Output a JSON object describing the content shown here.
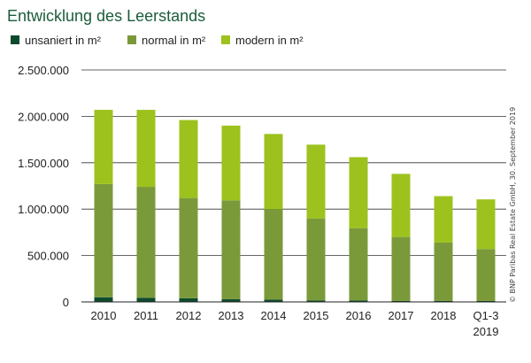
{
  "chart_data": {
    "type": "bar",
    "stacked": true,
    "title": "Entwicklung des Leerstands",
    "categories": [
      "2010",
      "2011",
      "2012",
      "2013",
      "2014",
      "2015",
      "2016",
      "2017",
      "2018",
      "Q1-3\n2019"
    ],
    "series": [
      {
        "name": "unsaniert in m²",
        "color": "#0e4a2e",
        "values": [
          50000,
          45000,
          40000,
          30000,
          25000,
          15000,
          15000,
          10000,
          10000,
          10000
        ]
      },
      {
        "name": "normal in m²",
        "color": "#7a9a3a",
        "values": [
          1220000,
          1195000,
          1080000,
          1065000,
          975000,
          885000,
          780000,
          690000,
          630000,
          560000
        ]
      },
      {
        "name": "modern in m²",
        "color": "#9dc21e",
        "values": [
          800000,
          830000,
          840000,
          805000,
          810000,
          795000,
          765000,
          680000,
          500000,
          535000
        ]
      }
    ],
    "ylim": [
      0,
      2500000
    ],
    "yticks": [
      0,
      500000,
      1000000,
      1500000,
      2000000,
      2500000
    ],
    "ytick_labels": [
      "0",
      "500.000",
      "1.000.000",
      "1.500.000",
      "2.000.000",
      "2.500.000"
    ],
    "grid": true,
    "legend": "top-left",
    "xlabel": "",
    "ylabel": ""
  },
  "credit": "© BNP Paribas Real Estate GmbH, 30. September 2019"
}
